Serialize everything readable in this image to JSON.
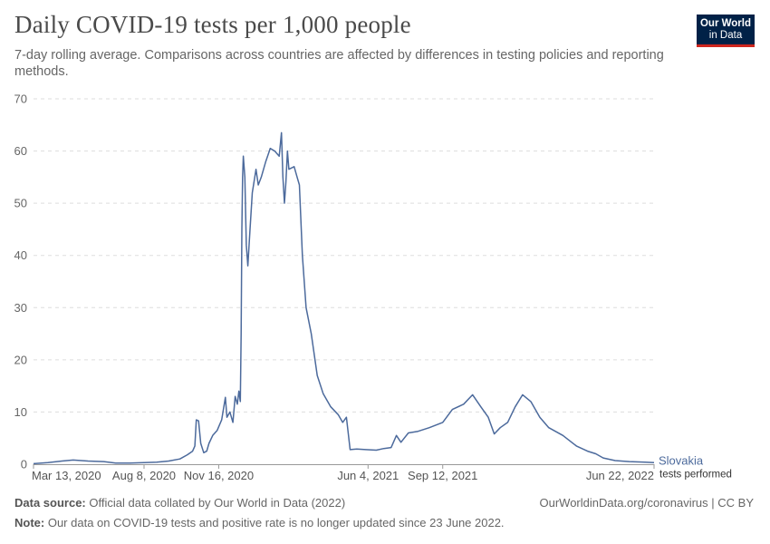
{
  "header": {
    "title": "Daily COVID-19 tests per 1,000 people",
    "subtitle": "7-day rolling average. Comparisons across countries are affected by differences in testing policies and reporting methods."
  },
  "logo": {
    "line1": "Our World",
    "line2": "in Data"
  },
  "colors": {
    "series": "#4c6a9c",
    "grid": "#dddddd",
    "logo_bg": "#002147",
    "logo_accent": "#ce261e"
  },
  "chart_data": {
    "type": "line",
    "title": "Daily COVID-19 tests per 1,000 people",
    "xlabel": "",
    "ylabel": "",
    "ylim": [
      0,
      70
    ],
    "yticks": [
      0,
      10,
      20,
      30,
      40,
      50,
      60,
      70
    ],
    "xlim": [
      "2020-03-13",
      "2022-06-22"
    ],
    "xticks": [
      {
        "date": "2020-03-13",
        "label": "Mar 13, 2020"
      },
      {
        "date": "2020-08-08",
        "label": "Aug 8, 2020"
      },
      {
        "date": "2020-11-16",
        "label": "Nov 16, 2020"
      },
      {
        "date": "2021-06-04",
        "label": "Jun 4, 2021"
      },
      {
        "date": "2021-09-12",
        "label": "Sep 12, 2021"
      },
      {
        "date": "2022-06-22",
        "label": "Jun 22, 2022"
      }
    ],
    "grid": "horizontal",
    "series": [
      {
        "name": "Slovakia",
        "sublabel": "tests performed",
        "points": [
          [
            "2020-03-13",
            0.1
          ],
          [
            "2020-04-01",
            0.3
          ],
          [
            "2020-04-20",
            0.6
          ],
          [
            "2020-05-05",
            0.8
          ],
          [
            "2020-05-25",
            0.6
          ],
          [
            "2020-06-15",
            0.5
          ],
          [
            "2020-07-01",
            0.2
          ],
          [
            "2020-07-20",
            0.2
          ],
          [
            "2020-08-08",
            0.3
          ],
          [
            "2020-08-25",
            0.4
          ],
          [
            "2020-09-10",
            0.6
          ],
          [
            "2020-09-25",
            1.0
          ],
          [
            "2020-10-05",
            1.8
          ],
          [
            "2020-10-12",
            2.5
          ],
          [
            "2020-10-15",
            3.5
          ],
          [
            "2020-10-17",
            8.5
          ],
          [
            "2020-10-20",
            8.3
          ],
          [
            "2020-10-23",
            4.0
          ],
          [
            "2020-10-27",
            2.2
          ],
          [
            "2020-10-31",
            2.5
          ],
          [
            "2020-11-03",
            4.0
          ],
          [
            "2020-11-08",
            5.5
          ],
          [
            "2020-11-14",
            6.5
          ],
          [
            "2020-11-20",
            8.5
          ],
          [
            "2020-11-25",
            12.8
          ],
          [
            "2020-11-27",
            9.0
          ],
          [
            "2020-12-01",
            10.0
          ],
          [
            "2020-12-05",
            8.0
          ],
          [
            "2020-12-08",
            13.0
          ],
          [
            "2020-12-11",
            11.5
          ],
          [
            "2020-12-13",
            14.0
          ],
          [
            "2020-12-15",
            12.0
          ],
          [
            "2020-12-16",
            25.0
          ],
          [
            "2020-12-17",
            45.0
          ],
          [
            "2020-12-18",
            55.0
          ],
          [
            "2020-12-19",
            59.0
          ],
          [
            "2020-12-21",
            55.0
          ],
          [
            "2020-12-23",
            42.0
          ],
          [
            "2020-12-25",
            38.0
          ],
          [
            "2020-12-28",
            45.0
          ],
          [
            "2020-12-31",
            52.0
          ],
          [
            "2021-01-05",
            56.5
          ],
          [
            "2021-01-08",
            53.5
          ],
          [
            "2021-01-12",
            55.0
          ],
          [
            "2021-01-18",
            58.0
          ],
          [
            "2021-01-24",
            60.5
          ],
          [
            "2021-01-30",
            60.0
          ],
          [
            "2021-02-05",
            59.0
          ],
          [
            "2021-02-08",
            63.5
          ],
          [
            "2021-02-10",
            55.0
          ],
          [
            "2021-02-12",
            50.0
          ],
          [
            "2021-02-14",
            54.0
          ],
          [
            "2021-02-16",
            60.0
          ],
          [
            "2021-02-18",
            56.5
          ],
          [
            "2021-02-25",
            57.0
          ],
          [
            "2021-03-01",
            55.0
          ],
          [
            "2021-03-04",
            53.5
          ],
          [
            "2021-03-08",
            40.0
          ],
          [
            "2021-03-13",
            30.0
          ],
          [
            "2021-03-20",
            25.0
          ],
          [
            "2021-03-28",
            17.0
          ],
          [
            "2021-04-05",
            13.5
          ],
          [
            "2021-04-15",
            11.0
          ],
          [
            "2021-04-25",
            9.5
          ],
          [
            "2021-05-01",
            8.0
          ],
          [
            "2021-05-06",
            9.0
          ],
          [
            "2021-05-11",
            2.8
          ],
          [
            "2021-05-20",
            2.9
          ],
          [
            "2021-06-01",
            2.8
          ],
          [
            "2021-06-15",
            2.7
          ],
          [
            "2021-06-25",
            3.0
          ],
          [
            "2021-07-05",
            3.2
          ],
          [
            "2021-07-12",
            5.5
          ],
          [
            "2021-07-18",
            4.2
          ],
          [
            "2021-07-28",
            6.0
          ],
          [
            "2021-08-10",
            6.3
          ],
          [
            "2021-08-25",
            7.0
          ],
          [
            "2021-09-12",
            8.0
          ],
          [
            "2021-09-25",
            10.5
          ],
          [
            "2021-10-10",
            11.5
          ],
          [
            "2021-10-22",
            13.3
          ],
          [
            "2021-11-02",
            11.0
          ],
          [
            "2021-11-12",
            9.0
          ],
          [
            "2021-11-20",
            5.8
          ],
          [
            "2021-11-28",
            7.0
          ],
          [
            "2021-12-08",
            8.0
          ],
          [
            "2021-12-18",
            11.0
          ],
          [
            "2021-12-28",
            13.3
          ],
          [
            "2022-01-08",
            12.0
          ],
          [
            "2022-01-20",
            9.0
          ],
          [
            "2022-02-01",
            7.0
          ],
          [
            "2022-02-20",
            5.5
          ],
          [
            "2022-03-10",
            3.5
          ],
          [
            "2022-03-25",
            2.5
          ],
          [
            "2022-04-05",
            2.0
          ],
          [
            "2022-04-15",
            1.2
          ],
          [
            "2022-05-01",
            0.7
          ],
          [
            "2022-05-20",
            0.5
          ],
          [
            "2022-06-10",
            0.4
          ],
          [
            "2022-06-22",
            0.3
          ]
        ]
      }
    ]
  },
  "footer": {
    "source_label": "Data source:",
    "source_text": "Official data collated by Our World in Data (2022)",
    "attribution": "OurWorldinData.org/coronavirus | CC BY",
    "note_label": "Note:",
    "note_text": "Our data on COVID-19 tests and positive rate is no longer updated since 23 June 2022."
  }
}
